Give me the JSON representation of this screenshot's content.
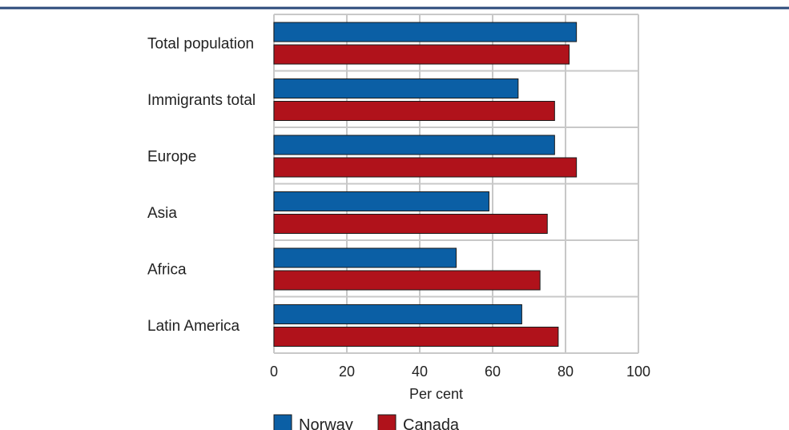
{
  "chart_data": {
    "type": "bar",
    "orientation": "horizontal",
    "title": "",
    "categories": [
      "Total population",
      "Immigrants total",
      "Europe",
      "Asia",
      "Africa",
      "Latin America"
    ],
    "series": [
      {
        "name": "Norway",
        "color": "#0b5fa5",
        "values": [
          83,
          67,
          77,
          59,
          50,
          68
        ]
      },
      {
        "name": "Canada",
        "color": "#b0121b",
        "values": [
          81,
          77,
          83,
          75,
          73,
          78
        ]
      }
    ],
    "xlabel": "Per cent",
    "ylabel": "",
    "xlim": [
      0,
      100
    ],
    "xticks": [
      "0",
      "20",
      "40",
      "60",
      "80",
      "100"
    ],
    "grid": true,
    "legend": "bottom",
    "colors": {
      "header_rule": "#2b4a7a",
      "grid": "#c8c8c8"
    }
  }
}
